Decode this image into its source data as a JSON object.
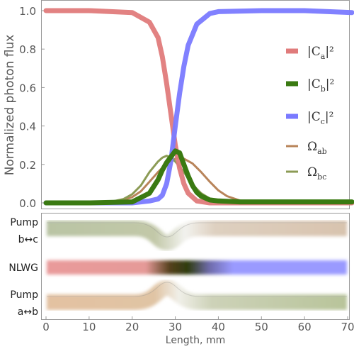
{
  "chart_data": [
    {
      "type": "line",
      "ylabel": "Normalized photon flux",
      "xlim": [
        0,
        71
      ],
      "ylim": [
        -0.02,
        1.05
      ],
      "yticks": [
        "0.0",
        "0.2",
        "0.4",
        "0.6",
        "0.8",
        "1.0"
      ],
      "grid": false,
      "legend_position": "right",
      "series": [
        {
          "name": "|C_a|^2",
          "color": "#e07b7b",
          "x": [
            0,
            10,
            20,
            24,
            26,
            27,
            28,
            29,
            30,
            31,
            32,
            33,
            35,
            38,
            45,
            71
          ],
          "y": [
            1.0,
            1.0,
            0.99,
            0.94,
            0.86,
            0.76,
            0.62,
            0.46,
            0.3,
            0.18,
            0.1,
            0.05,
            0.01,
            0.0,
            0.0,
            0.0
          ]
        },
        {
          "name": "|C_b|^2",
          "color": "#3a7a12",
          "x": [
            0,
            10,
            20,
            24,
            26,
            27,
            28,
            29,
            30,
            31,
            32,
            33,
            34,
            35,
            36,
            38,
            40,
            45,
            71
          ],
          "y": [
            0.0,
            0.0,
            0.005,
            0.05,
            0.12,
            0.17,
            0.21,
            0.24,
            0.27,
            0.26,
            0.2,
            0.14,
            0.09,
            0.055,
            0.035,
            0.015,
            0.01,
            0.005,
            0.005
          ]
        },
        {
          "name": "|C_c|^2",
          "color": "#7a7aff",
          "x": [
            0,
            10,
            20,
            24,
            26,
            27,
            28,
            29,
            30,
            31,
            32,
            33,
            35,
            38,
            40,
            50,
            60,
            71
          ],
          "y": [
            0.0,
            0.0,
            0.0,
            0.01,
            0.02,
            0.04,
            0.1,
            0.22,
            0.4,
            0.57,
            0.71,
            0.82,
            0.93,
            0.985,
            0.995,
            1.0,
            1.0,
            0.99
          ]
        },
        {
          "name": "Ω_ab",
          "color": "#b8845a",
          "x": [
            0,
            10,
            15,
            18,
            20,
            22,
            24,
            26,
            28,
            30,
            31,
            32,
            34,
            36,
            38,
            40,
            42,
            45,
            50,
            71
          ],
          "y": [
            0.0,
            0.0,
            0.005,
            0.015,
            0.03,
            0.06,
            0.11,
            0.16,
            0.205,
            0.23,
            0.235,
            0.23,
            0.205,
            0.16,
            0.11,
            0.065,
            0.035,
            0.012,
            0.0,
            0.0
          ]
        },
        {
          "name": "Ω_bc",
          "color": "#8c9b55",
          "x": [
            0,
            10,
            15,
            18,
            20,
            22,
            24,
            26,
            27,
            28,
            29,
            30,
            32,
            34,
            36,
            38,
            40,
            45,
            71
          ],
          "y": [
            0.0,
            0.0,
            0.005,
            0.02,
            0.045,
            0.09,
            0.16,
            0.215,
            0.235,
            0.245,
            0.235,
            0.215,
            0.16,
            0.095,
            0.05,
            0.022,
            0.01,
            0.0,
            0.0
          ]
        }
      ],
      "legend": [
        {
          "main": "|C",
          "sub": "a",
          "tail": "|²"
        },
        {
          "main": "|C",
          "sub": "b",
          "tail": "|²"
        },
        {
          "main": "|C",
          "sub": "c",
          "tail": "|²"
        },
        {
          "main": "Ω",
          "sub": "ab",
          "tail": ""
        },
        {
          "main": "Ω",
          "sub": "bc",
          "tail": ""
        }
      ]
    },
    {
      "type": "diagram",
      "xlabel": "Length, mm",
      "xlim": [
        0,
        71
      ],
      "xticks": [
        "0",
        "10",
        "20",
        "30",
        "40",
        "50",
        "60",
        "70"
      ],
      "rows": [
        {
          "label_line1": "Pump",
          "label_line2": "b↔c",
          "left_color": "#b9c4a4",
          "right_color": "#d8c3ae"
        },
        {
          "label_line1": "NLWG",
          "label_line2": "",
          "left_color": "#e99a9a",
          "right_color": "#9a9aff"
        },
        {
          "label_line1": "Pump",
          "label_line2": "a↔b",
          "left_color": "#e3c1a1",
          "right_color": "#b8c49a"
        }
      ]
    }
  ]
}
